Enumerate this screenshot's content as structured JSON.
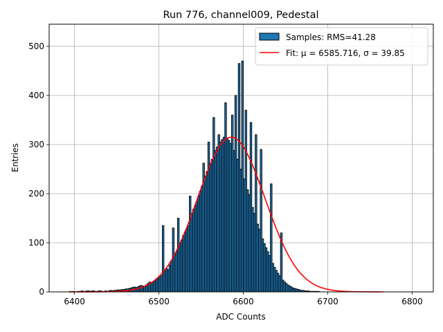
{
  "chart_data": {
    "type": "bar",
    "title": "Run 776, channel009, Pedestal",
    "xlabel": "ADC Counts",
    "ylabel": "Entries",
    "xlim": [
      6370,
      6825
    ],
    "ylim": [
      0,
      545
    ],
    "xticks": [
      6400,
      6500,
      6600,
      6700,
      6800
    ],
    "yticks": [
      0,
      100,
      200,
      300,
      400,
      500
    ],
    "grid": true,
    "legend_position": "top-right",
    "histogram": {
      "name": "Samples: RMS=41.28",
      "bin_start": 6394,
      "bin_width": 2,
      "values": [
        1,
        0,
        1,
        0,
        0,
        1,
        1,
        2,
        1,
        1,
        2,
        2,
        1,
        2,
        2,
        1,
        1,
        2,
        2,
        1,
        1,
        2,
        1,
        2,
        3,
        2,
        3,
        3,
        4,
        4,
        4,
        5,
        5,
        6,
        6,
        7,
        8,
        9,
        10,
        9,
        10,
        12,
        13,
        12,
        11,
        14,
        17,
        20,
        19,
        21,
        22,
        25,
        28,
        30,
        33,
        38,
        42,
        48,
        45,
        55,
        62,
        66,
        75,
        82,
        90,
        98,
        105,
        115,
        122,
        128,
        135,
        150,
        158,
        168,
        175,
        183,
        195,
        205,
        215,
        225,
        235,
        245,
        250,
        262,
        270,
        280,
        288,
        295,
        300,
        305,
        310,
        315,
        315,
        312,
        308,
        302,
        295,
        288,
        280,
        270,
        260,
        250,
        240,
        230,
        218,
        208,
        198,
        185,
        172,
        160,
        150,
        138,
        128,
        118,
        108,
        98,
        90,
        82,
        74,
        66,
        58,
        50,
        44,
        38,
        33,
        28,
        24,
        20,
        17,
        14,
        12,
        10,
        8,
        7,
        6,
        5,
        4,
        3,
        3,
        2,
        2,
        2,
        1,
        1,
        1,
        1,
        1,
        1,
        0,
        0,
        0,
        0,
        0,
        0,
        0,
        0,
        0,
        0,
        0,
        0,
        0,
        0,
        0,
        0,
        0,
        0,
        0,
        0,
        0,
        0,
        0,
        0,
        0,
        0,
        0,
        0,
        0,
        0,
        0,
        0,
        0,
        0,
        0,
        0,
        0,
        0,
        0,
        0,
        0,
        0,
        0,
        0,
        0,
        0,
        0
      ],
      "spikes": [
        [
          6503,
          135
        ],
        [
          6515,
          130
        ],
        [
          6521,
          150
        ],
        [
          6535,
          195
        ],
        [
          6551,
          262
        ],
        [
          6557,
          305
        ],
        [
          6563,
          355
        ],
        [
          6569,
          320
        ],
        [
          6577,
          385
        ],
        [
          6585,
          360
        ],
        [
          6589,
          400
        ],
        [
          6593,
          465
        ],
        [
          6597,
          470
        ],
        [
          6601,
          370
        ],
        [
          6607,
          345
        ],
        [
          6613,
          320
        ],
        [
          6619,
          290
        ],
        [
          6631,
          220
        ],
        [
          6643,
          120
        ]
      ],
      "fill": "#1f77b4",
      "edge": "#000000"
    },
    "fit": {
      "name": "Fit: μ = 6585.716, σ = 39.85",
      "mu": 6585.716,
      "sigma": 39.85,
      "amplitude": 315,
      "x_range": [
        6394,
        6766
      ],
      "color": "#ff0000"
    }
  }
}
